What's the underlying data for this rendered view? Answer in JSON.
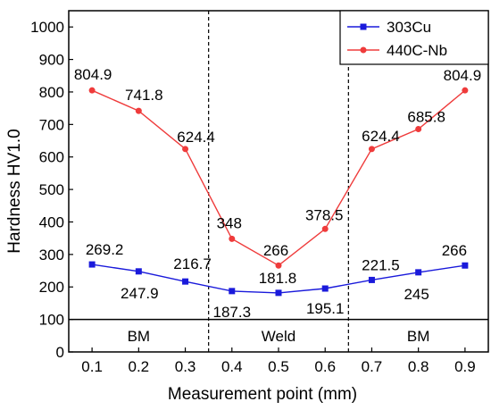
{
  "chart_data": {
    "type": "line",
    "xlabel": "Measurement point (mm)",
    "ylabel": "Hardness HV1.0",
    "x": [
      0.1,
      0.2,
      0.3,
      0.4,
      0.5,
      0.6,
      0.7,
      0.8,
      0.9
    ],
    "xlim": [
      0.05,
      0.95
    ],
    "ylim": [
      0,
      1050
    ],
    "xticks": [
      "0.1",
      "0.2",
      "0.3",
      "0.4",
      "0.5",
      "0.6",
      "0.7",
      "0.8",
      "0.9"
    ],
    "yticks": [
      "0",
      "100",
      "200",
      "300",
      "400",
      "500",
      "600",
      "700",
      "800",
      "900",
      "1000"
    ],
    "series": [
      {
        "name": "303Cu",
        "color": "#1a1adb",
        "marker": "square",
        "values": [
          269.2,
          247.9,
          216.7,
          187.3,
          181.8,
          195.1,
          221.5,
          245,
          266
        ],
        "labels": [
          "269.2",
          "247.9",
          "216.7",
          "187.3",
          "181.8",
          "195.1",
          "221.5",
          "245",
          "266"
        ]
      },
      {
        "name": "440C-Nb",
        "color": "#ef3b3b",
        "marker": "circle",
        "values": [
          804.9,
          741.8,
          624.4,
          348,
          266,
          378.5,
          624.4,
          685.8,
          804.9
        ],
        "labels": [
          "804.9",
          "741.8",
          "624.4",
          "348",
          "266",
          "378.5",
          "624.4",
          "685.8",
          "804.9"
        ]
      }
    ],
    "regions": [
      {
        "label": "BM",
        "x_from": 0.05,
        "x_to": 0.35
      },
      {
        "label": "Weld",
        "x_from": 0.35,
        "x_to": 0.65
      },
      {
        "label": "BM",
        "x_from": 0.65,
        "x_to": 0.95
      }
    ],
    "region_band": [
      0,
      100
    ],
    "legend_position": "top-right",
    "grid": false
  }
}
